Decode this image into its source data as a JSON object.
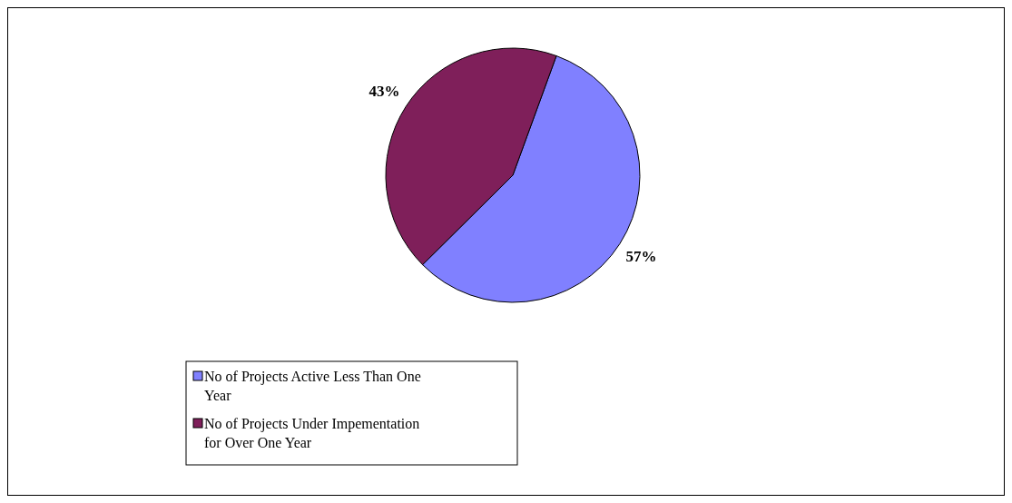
{
  "chart_data": {
    "type": "pie",
    "categories": [
      "No of Projects Active Less Than One Year",
      "No of Projects Under Impementation for Over One Year"
    ],
    "values": [
      57,
      43
    ],
    "value_labels": [
      "57%",
      "43%"
    ],
    "colors": [
      "#8080ff",
      "#7f1f5a"
    ],
    "legend": "bottom left"
  }
}
